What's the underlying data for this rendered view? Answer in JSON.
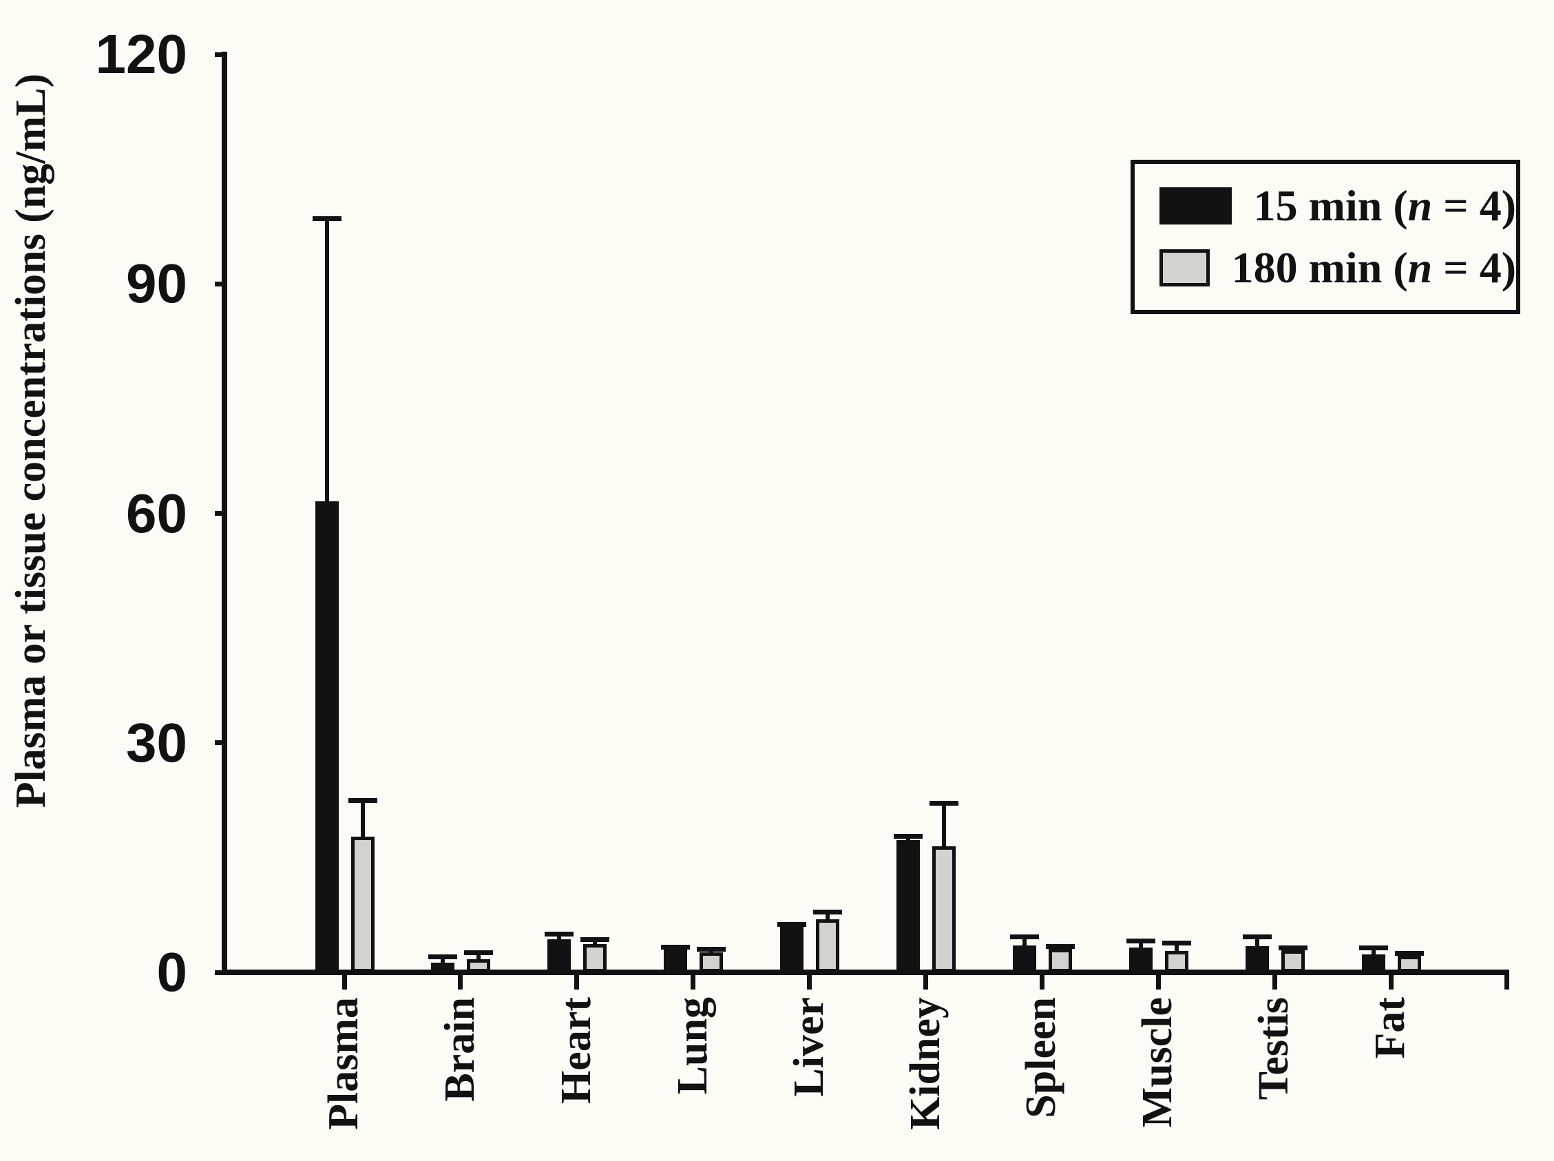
{
  "figure": {
    "background": "#fcfbf6",
    "ink_color": "#121212"
  },
  "chart_data": {
    "type": "bar",
    "title": "",
    "xlabel": "",
    "ylabel": "Plasma or tissue concentrations (ng/mL)",
    "ylim": [
      0,
      120
    ],
    "yticks": [
      0,
      30,
      60,
      90,
      120
    ],
    "grid": false,
    "error_bars": "upper only, capped",
    "legend_position": "top-right, boxed",
    "categories": [
      "Plasma",
      "Brain",
      "Heart",
      "Lung",
      "Liver",
      "Kidney",
      "Spleen",
      "Muscle",
      "Testis",
      "Fat"
    ],
    "series": [
      {
        "name": "15 min (n = 4)",
        "color": "#121212",
        "values": [
          61.6,
          1.3,
          4.3,
          3.0,
          6.0,
          17.3,
          3.5,
          3.2,
          3.4,
          2.3
        ],
        "errors": [
          36.9,
          0.7,
          0.7,
          0.3,
          0.3,
          0.5,
          1.1,
          0.9,
          1.2,
          0.9
        ]
      },
      {
        "name": "180 min (n = 4)",
        "color": "#d2d2d0",
        "values": [
          17.7,
          1.7,
          3.7,
          2.6,
          6.9,
          16.5,
          3.1,
          2.8,
          2.9,
          2.2
        ],
        "errors": [
          4.8,
          0.9,
          0.6,
          0.4,
          1.0,
          5.6,
          0.3,
          1.0,
          0.3,
          0.3
        ]
      }
    ],
    "legend": {
      "entries": [
        {
          "pre": "15 min (",
          "n": "n",
          "post": " = 4)"
        },
        {
          "pre": "180 min (",
          "n": "n",
          "post": " = 4)"
        }
      ]
    }
  }
}
